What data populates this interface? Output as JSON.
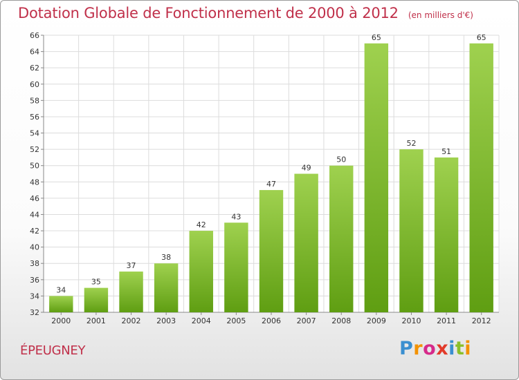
{
  "header": {
    "title": "Dotation Globale de Fonctionnement de 2000 à 2012",
    "unit": "(en milliers d'€)"
  },
  "commune": "ÉPEUGNEY",
  "logo": {
    "text": "Proxiti",
    "letter_colors": [
      "#3a8fd0",
      "#f39200",
      "#d62a8a",
      "#e23a2a",
      "#3a8fd0",
      "#8bbf2a",
      "#f39200"
    ]
  },
  "colors": {
    "title": "#c0304a",
    "bar_light": "#9fd14f",
    "bar_dark": "#5f9e12",
    "grid": "#dcdcdc"
  },
  "chart_data": {
    "type": "bar",
    "title": "Dotation Globale de Fonctionnement de 2000 à 2012",
    "subtitle": "(en milliers d'€)",
    "categories": [
      "2000",
      "2001",
      "2002",
      "2003",
      "2004",
      "2005",
      "2006",
      "2007",
      "2008",
      "2009",
      "2010",
      "2011",
      "2012"
    ],
    "values": [
      34,
      35,
      37,
      38,
      42,
      43,
      47,
      49,
      50,
      65,
      52,
      51,
      65
    ],
    "ylim": [
      32,
      66
    ],
    "ytick_step": 2,
    "grid": true,
    "data_labels": true
  }
}
